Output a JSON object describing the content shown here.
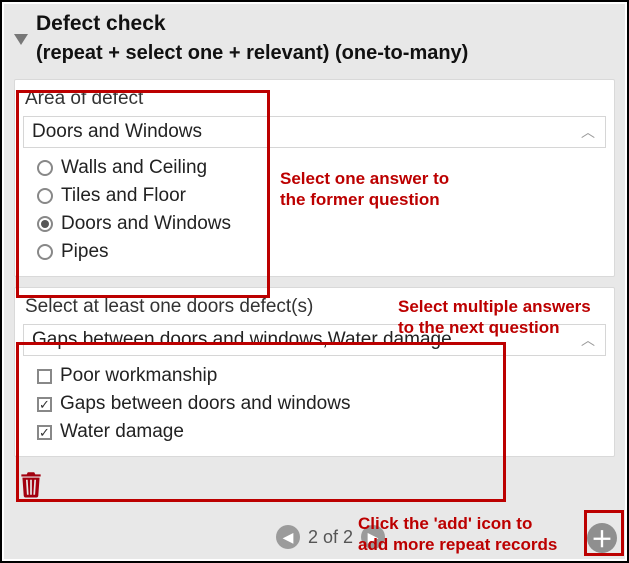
{
  "colors": {
    "annotation": "#bc0000",
    "panel_bg": "#e8e8e8",
    "card_bg": "#ffffff",
    "border": "#d6d6d6",
    "text": "#222222",
    "trash": "#a3000f",
    "circle_btn": "#9b9b9b"
  },
  "header": {
    "title": "Defect check",
    "subtitle": "(repeat + select one + relevant) (one-to-many)"
  },
  "area": {
    "label": "Area of defect",
    "selected_display": "Doors and Windows",
    "options": [
      {
        "label": "Walls and Ceiling",
        "checked": false
      },
      {
        "label": "Tiles and Floor",
        "checked": false
      },
      {
        "label": "Doors and Windows",
        "checked": true
      },
      {
        "label": "Pipes",
        "checked": false
      }
    ]
  },
  "defects": {
    "label": "Select at least one doors defect(s)",
    "selected_display": "Gaps between doors and windows,Water damage",
    "options": [
      {
        "label": "Poor workmanship",
        "checked": false
      },
      {
        "label": "Gaps between doors and windows",
        "checked": true
      },
      {
        "label": "Water damage",
        "checked": true
      }
    ]
  },
  "pager": {
    "text": "2 of 2"
  },
  "annotations": {
    "a1": "Select one answer to\nthe former question",
    "a2": "Select multiple answers\nto the next question",
    "a3": "Click the 'add' icon to\nadd more repeat records"
  }
}
